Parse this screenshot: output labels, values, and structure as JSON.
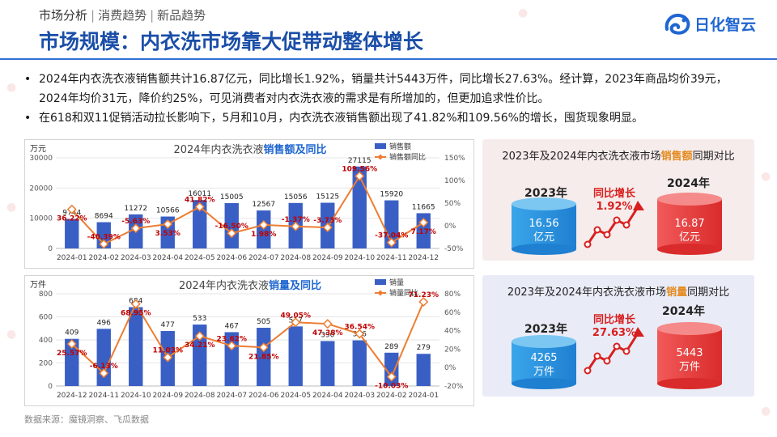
{
  "header": {
    "breadcrumb": [
      "市场分析",
      "消费趋势",
      "新品趋势"
    ],
    "breadcrumb_sep": "|",
    "title": "市场规模：内衣洗市场靠大促带动整体增长",
    "logo_text": "日化智云"
  },
  "bullets": [
    "2024年内衣洗衣液销售额共计16.87亿元，同比增长1.92%，销量共计5443万件，同比增长27.63%。经计算，2023年商品均价39元，2024年均价31元，降价约25%，可见消费者对内衣洗衣液的需求是有所增加的，但更加追求性价比。",
    "在618和双11促销活动拉长影响下，5月和10月，内衣洗衣液销售额出现了41.82%和109.56%的增长，囤货现象明显。"
  ],
  "source": "数据来源：魔镜洞察、飞瓜数据",
  "colors": {
    "bar": "#3a5fc4",
    "bar_peak": "#2b4fb5",
    "line": "#ed7d31",
    "label_red": "#c00000",
    "accent_blue": "#1f66d1",
    "accent_orange": "#e58a1f",
    "growth_red": "#d81f1f"
  },
  "chart_data": [
    {
      "type": "bar",
      "title_prefix": "2024年内衣洗衣液",
      "title_highlight": "销售额及同比",
      "y_unit": "万元",
      "ylim": [
        0,
        30000
      ],
      "yticks": [
        "0",
        "10000",
        "20000",
        "30000"
      ],
      "y2lim": [
        -50,
        150
      ],
      "y2ticks": [
        "-50%",
        "0%",
        "50%",
        "100%",
        "150%"
      ],
      "categories": [
        "2024-01",
        "2024-02",
        "2024-03",
        "2024-04",
        "2024-05",
        "2024-06",
        "2024-07",
        "2024-08",
        "2024-09",
        "2024-10",
        "2024-11",
        "2024-12"
      ],
      "series": [
        {
          "name": "销售额",
          "type": "bar",
          "values": [
            9744,
            8694,
            11272,
            10566,
            16011,
            15005,
            12567,
            15056,
            15125,
            27115,
            15920,
            11665
          ],
          "labels": [
            "9744",
            "8694",
            "11272",
            "10566",
            "16011",
            "15005",
            "12567",
            "15056",
            "15125",
            "27115",
            "15920",
            "11665"
          ]
        },
        {
          "name": "销售额同比",
          "type": "line",
          "axis": "secondary",
          "values": [
            36.22,
            -40.39,
            -5.63,
            3.53,
            41.82,
            -16.5,
            1.98,
            -1.37,
            -3.73,
            109.56,
            -37.04,
            7.17
          ],
          "labels": [
            "36.22%",
            "-40.39%",
            "-5.63%",
            "3.53%",
            "41.82%",
            "-16.50%",
            "1.98%",
            "-1.37%",
            "-3.73%",
            "109.56%",
            "-37.04%",
            "7.17%"
          ]
        }
      ],
      "legend": "top-right"
    },
    {
      "type": "bar",
      "title_prefix": "2024年内衣洗衣液",
      "title_highlight": "销量及同比",
      "y_unit": "万件",
      "ylim": [
        0,
        800
      ],
      "yticks": [
        "0",
        "200",
        "400",
        "600",
        "800"
      ],
      "y2lim": [
        -20,
        80
      ],
      "y2ticks": [
        "-20%",
        "0%",
        "20%",
        "40%",
        "60%",
        "80%"
      ],
      "categories": [
        "2024-12",
        "2024-11",
        "2024-10",
        "2024-09",
        "2024-08",
        "2024-07",
        "2024-06",
        "2024-05",
        "2024-04",
        "2024-03",
        "2024-02",
        "2024-01"
      ],
      "series": [
        {
          "name": "销量",
          "type": "bar",
          "values": [
            409,
            496,
            684,
            477,
            533,
            467,
            505,
            517,
            390,
            396,
            289,
            279
          ],
          "labels": [
            "409",
            "496",
            "684",
            "477",
            "533",
            "467",
            "505",
            "517",
            "390",
            "396",
            "289",
            "279"
          ]
        },
        {
          "name": "销量同比",
          "type": "line",
          "axis": "secondary",
          "values": [
            25.57,
            -6.13,
            68.95,
            11.03,
            34.21,
            23.62,
            21.85,
            49.05,
            47.38,
            36.54,
            -10.03,
            71.23
          ],
          "labels": [
            "25.57%",
            "-6.13%",
            "68.95%",
            "11.03%",
            "34.21%",
            "23.62%",
            "21.85%",
            "49.05%",
            "47.38%",
            "36.54%",
            "-10.03%",
            "71.23%"
          ]
        }
      ],
      "legend": "top-right"
    }
  ],
  "comparisons": [
    {
      "title_prefix": "2023年及2024年内衣洗衣液市场",
      "title_highlight": "销售额",
      "title_suffix": "同期对比",
      "year_a": "2023年",
      "value_a": "16.56",
      "unit_a": "亿元",
      "year_b": "2024年",
      "value_b": "16.87",
      "unit_b": "亿元",
      "growth_label": "同比增长",
      "growth_value": "1.92%"
    },
    {
      "title_prefix": "2023年及2024年内衣洗衣液市场",
      "title_highlight": "销量",
      "title_suffix": "同期对比",
      "year_a": "2023年",
      "value_a": "4265",
      "unit_a": "万件",
      "year_b": "2024年",
      "value_b": "5443",
      "unit_b": "万件",
      "growth_label": "同比增长",
      "growth_value": "27.63%"
    }
  ]
}
